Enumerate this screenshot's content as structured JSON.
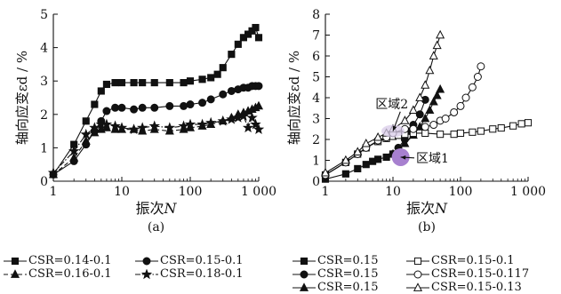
{
  "figure": {
    "legend_a": [
      [
        "CSR=0.14-0.1",
        "CSR=0.15-0.1"
      ],
      [
        "CSR=0.16-0.1",
        "CSR=0.18-0.1"
      ]
    ],
    "legend_b": [
      [
        "CSR=0.15",
        "CSR=0.15-0.1"
      ],
      [
        "CSR=0.15",
        "CSR=0.15-0.117"
      ],
      [
        "CSR=0.15",
        "CSR=0.15-0.13"
      ]
    ]
  },
  "chart_data": [
    {
      "type": "line",
      "panel_label": "(a)",
      "xlabel_text": "振次",
      "xlabel_var": "N",
      "ylabel": "轴向应变εd / %",
      "xscale": "log",
      "xlim": [
        1,
        1000
      ],
      "ylim": [
        0,
        5
      ],
      "xticks": [
        1,
        10,
        100,
        1000
      ],
      "xtick_labels": [
        "1",
        "10",
        "100",
        "1 000"
      ],
      "yticks": [
        0,
        1,
        2,
        3,
        4,
        5
      ],
      "ytick_labels": [
        "0",
        "1",
        "2",
        "3",
        "4",
        "5"
      ],
      "grid": false,
      "legend_position": "below",
      "series": [
        {
          "name": "CSR=0.14-0.1",
          "marker": "square-filled",
          "line": "solid",
          "x": [
            1,
            2,
            3,
            4,
            5,
            6,
            8,
            10,
            15,
            20,
            30,
            50,
            80,
            100,
            150,
            200,
            250,
            300,
            400,
            500,
            600,
            700,
            800,
            900,
            1000
          ],
          "y": [
            0.2,
            1.1,
            1.8,
            2.3,
            2.7,
            2.9,
            2.95,
            2.95,
            2.95,
            2.95,
            2.95,
            2.95,
            2.95,
            3.0,
            3.05,
            3.1,
            3.2,
            3.4,
            3.8,
            4.1,
            4.3,
            4.4,
            4.5,
            4.6,
            4.3
          ]
        },
        {
          "name": "CSR=0.15-0.1",
          "marker": "circle-filled",
          "line": "solid",
          "x": [
            1,
            2,
            3,
            4,
            5,
            6,
            8,
            10,
            15,
            20,
            30,
            50,
            80,
            100,
            150,
            200,
            300,
            400,
            500,
            600,
            700,
            800,
            900,
            1000
          ],
          "y": [
            0.2,
            0.6,
            1.1,
            1.5,
            1.8,
            2.1,
            2.2,
            2.2,
            2.15,
            2.2,
            2.2,
            2.25,
            2.25,
            2.3,
            2.35,
            2.45,
            2.6,
            2.7,
            2.75,
            2.8,
            2.8,
            2.85,
            2.85,
            2.85
          ]
        },
        {
          "name": "CSR=0.16-0.1",
          "marker": "triangle-filled",
          "line": "dashed",
          "x": [
            1,
            2,
            3,
            4,
            5,
            6,
            8,
            10,
            15,
            20,
            30,
            50,
            80,
            100,
            150,
            200,
            300,
            400,
            500,
            600,
            700,
            800,
            900,
            1000
          ],
          "y": [
            0.2,
            0.7,
            1.2,
            1.45,
            1.55,
            1.6,
            1.55,
            1.55,
            1.55,
            1.5,
            1.55,
            1.5,
            1.55,
            1.6,
            1.65,
            1.7,
            1.8,
            1.9,
            2.0,
            2.05,
            2.1,
            2.15,
            2.2,
            2.25
          ]
        },
        {
          "name": "CSR=0.18-0.1",
          "marker": "star-filled",
          "line": "dash-dot",
          "x": [
            1,
            2,
            3,
            4,
            5,
            6,
            8,
            10,
            15,
            20,
            30,
            50,
            80,
            100,
            150,
            200,
            300,
            400,
            500,
            600,
            700,
            800,
            900,
            1000
          ],
          "y": [
            0.25,
            0.9,
            1.4,
            1.6,
            1.7,
            1.7,
            1.65,
            1.6,
            1.55,
            1.6,
            1.65,
            1.6,
            1.65,
            1.7,
            1.7,
            1.75,
            1.8,
            1.85,
            1.9,
            1.95,
            1.6,
            1.9,
            1.7,
            1.55
          ]
        }
      ]
    },
    {
      "type": "scatter",
      "panel_label": "(b)",
      "xlabel_text": "振次",
      "xlabel_var": "N",
      "ylabel": "轴向应变εd / %",
      "xscale": "log",
      "xlim": [
        1,
        1000
      ],
      "ylim": [
        0,
        8
      ],
      "xticks": [
        1,
        10,
        100,
        1000
      ],
      "xtick_labels": [
        "1",
        "10",
        "100",
        "1 000"
      ],
      "yticks": [
        0,
        1,
        2,
        3,
        4,
        5,
        6,
        7,
        8
      ],
      "ytick_labels": [
        "0",
        "1",
        "2",
        "3",
        "4",
        "5",
        "6",
        "7",
        "8"
      ],
      "grid": false,
      "legend_position": "below",
      "series": [
        {
          "name": "CSR=0.15",
          "marker": "square-filled",
          "line": "solid",
          "x": [
            1,
            2,
            3,
            4,
            5,
            6,
            8,
            10
          ],
          "y": [
            0.1,
            0.35,
            0.6,
            0.8,
            0.95,
            1.05,
            1.15,
            1.3
          ]
        },
        {
          "name": "CSR=0.15",
          "marker": "circle-filled",
          "line": "solid",
          "x": [
            10,
            12,
            15,
            18,
            20,
            25,
            30
          ],
          "y": [
            1.3,
            1.6,
            2.0,
            2.4,
            2.7,
            3.2,
            3.9
          ]
        },
        {
          "name": "CSR=0.15",
          "marker": "triangle-filled",
          "line": "solid",
          "x": [
            10,
            15,
            20,
            25,
            30,
            35,
            40,
            45,
            50
          ],
          "y": [
            1.3,
            1.8,
            2.2,
            2.6,
            3.0,
            3.4,
            3.8,
            4.1,
            4.4
          ]
        },
        {
          "name": "CSR=0.15-0.1",
          "marker": "square-open",
          "line": "solid",
          "x": [
            1,
            2,
            3,
            4,
            6,
            8,
            10,
            12,
            15,
            20,
            30,
            50,
            80,
            100,
            150,
            200,
            300,
            400,
            600,
            800,
            1000
          ],
          "y": [
            0.3,
            0.9,
            1.3,
            1.6,
            1.9,
            2.05,
            2.15,
            2.2,
            2.25,
            2.3,
            2.3,
            2.25,
            2.25,
            2.3,
            2.35,
            2.4,
            2.5,
            2.55,
            2.65,
            2.75,
            2.8
          ]
        },
        {
          "name": "CSR=0.15-0.117",
          "marker": "circle-open",
          "line": "solid",
          "x": [
            1,
            2,
            3,
            4,
            6,
            8,
            10,
            15,
            20,
            30,
            40,
            50,
            60,
            80,
            100,
            120,
            150,
            180,
            200
          ],
          "y": [
            0.3,
            0.9,
            1.3,
            1.6,
            1.95,
            2.1,
            2.3,
            2.5,
            2.5,
            2.6,
            2.7,
            2.9,
            3.0,
            3.3,
            3.6,
            4.0,
            4.5,
            5.0,
            5.5
          ]
        },
        {
          "name": "CSR=0.15-0.13",
          "marker": "triangle-open",
          "line": "solid",
          "x": [
            1,
            2,
            3,
            4,
            6,
            8,
            10,
            15,
            20,
            25,
            30,
            35,
            40,
            45,
            50
          ],
          "y": [
            0.4,
            1.0,
            1.4,
            1.8,
            2.1,
            2.3,
            2.5,
            2.9,
            3.4,
            4.0,
            4.6,
            5.3,
            6.0,
            6.5,
            7.0
          ]
        }
      ],
      "annotations": [
        {
          "text": "区域2",
          "x": 5.5,
          "y": 3.5,
          "arrow_to": [
            10,
            2.4
          ],
          "region": "ellipse"
        },
        {
          "text": "区域1",
          "x": 22,
          "y": 0.9,
          "arrow_to": [
            13,
            1.15
          ],
          "region": "circle"
        }
      ]
    }
  ]
}
